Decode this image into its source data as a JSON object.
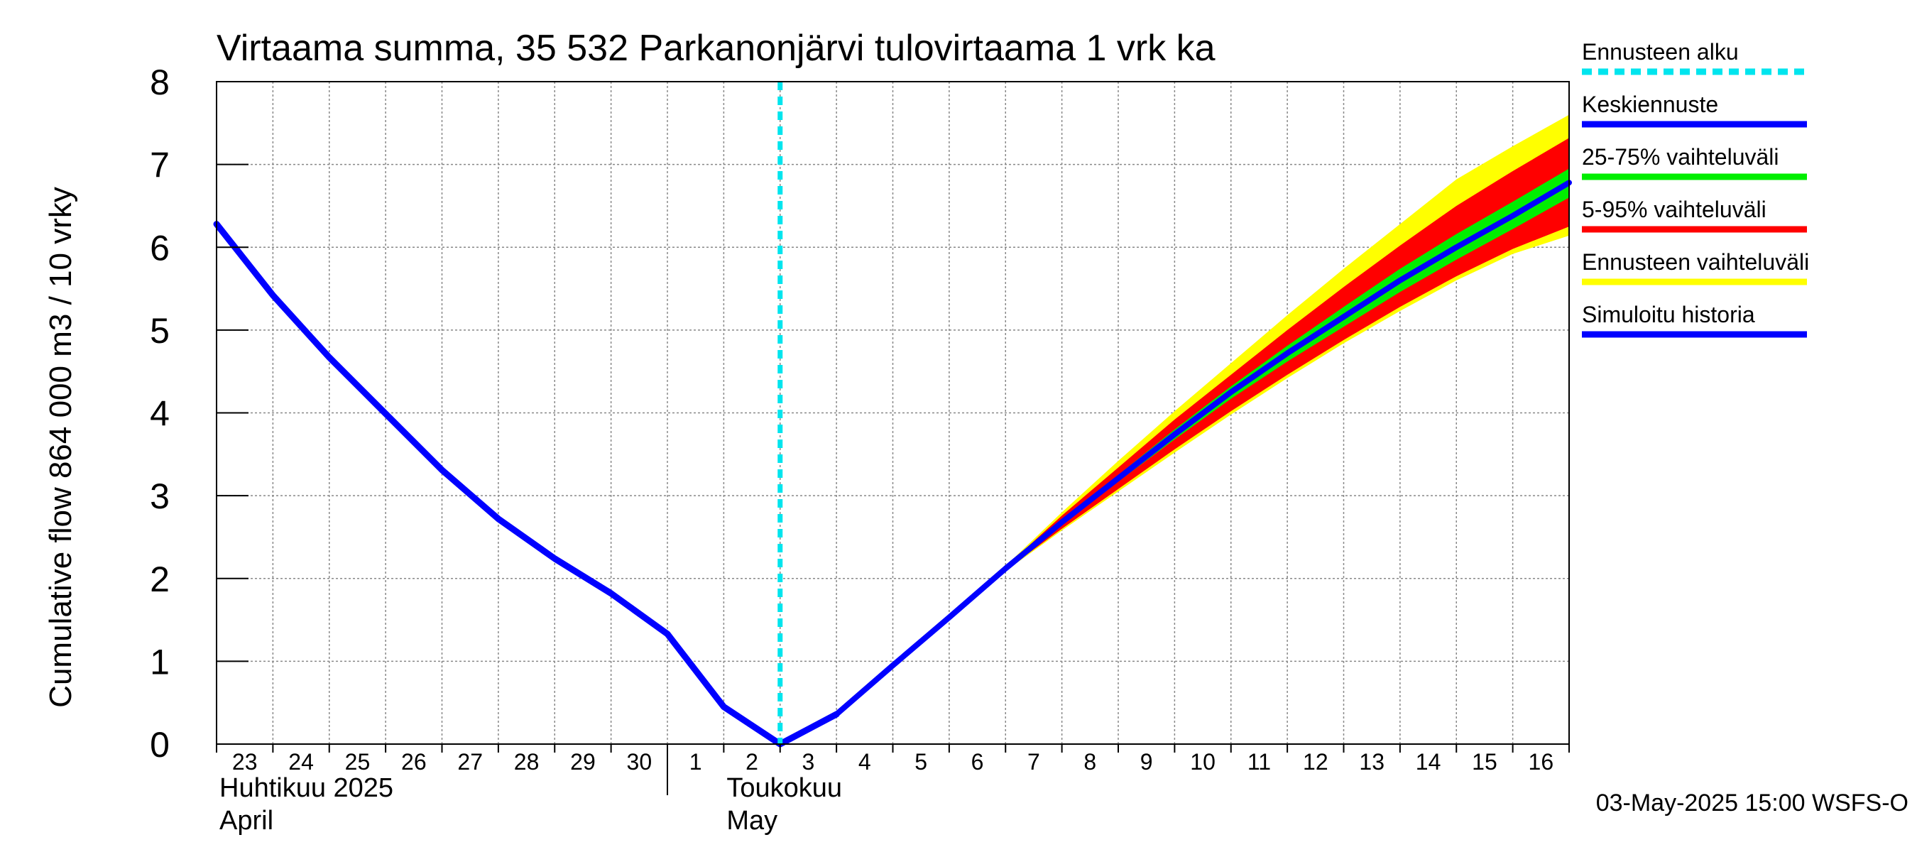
{
  "chart_data": {
    "type": "line",
    "title": "Virtaama summa, 35 532 Parkanonjärvi tulovirtaama 1 vrk ka",
    "ylabel": "Cumulative flow    864 000 m3 / 10 vrky",
    "xlabel": "",
    "ylim": [
      0,
      8
    ],
    "yticks": [
      0,
      1,
      2,
      3,
      4,
      5,
      6,
      7,
      8
    ],
    "xlim": [
      0,
      24
    ],
    "grid": true,
    "day_labels": [
      "23",
      "24",
      "25",
      "26",
      "27",
      "28",
      "29",
      "30",
      "1",
      "2",
      "3",
      "4",
      "5",
      "6",
      "7",
      "8",
      "9",
      "10",
      "11",
      "12",
      "13",
      "14",
      "15",
      "16"
    ],
    "month_labels": [
      {
        "line1": "Huhtikuu  2025",
        "line2": "April",
        "at_day": 0
      },
      {
        "line1": "Toukokuu",
        "line2": "May",
        "at_day": 9
      }
    ],
    "month_separator_day": 8,
    "forecast_start_day": 10,
    "history": {
      "name": "Simuloitu historia",
      "x": [
        0,
        1,
        2,
        3,
        4,
        5,
        6,
        7,
        8,
        9,
        10,
        11
      ],
      "y": [
        6.28,
        5.42,
        4.67,
        3.99,
        3.31,
        2.72,
        2.24,
        1.82,
        1.33,
        0.45,
        0.0,
        0.36
      ]
    },
    "median": {
      "name": "Keskiennuste",
      "x": [
        11,
        12,
        13,
        14,
        15,
        16,
        17,
        18,
        19,
        20,
        21,
        22,
        23,
        24
      ],
      "y": [
        0.36,
        0.95,
        1.53,
        2.12,
        2.68,
        3.21,
        3.74,
        4.25,
        4.72,
        5.16,
        5.6,
        6.0,
        6.38,
        6.78
      ]
    },
    "band_25_75": {
      "name": "25-75% vaihteluväli",
      "x": [
        14,
        15,
        16,
        17,
        18,
        19,
        20,
        21,
        22,
        23,
        24
      ],
      "lower": [
        2.12,
        2.66,
        3.17,
        3.68,
        4.17,
        4.62,
        5.04,
        5.46,
        5.85,
        6.22,
        6.6
      ],
      "upper": [
        2.12,
        2.7,
        3.25,
        3.8,
        4.32,
        4.81,
        5.28,
        5.74,
        6.16,
        6.55,
        6.95
      ]
    },
    "band_5_95": {
      "name": "5-95% vaihteluväli",
      "x": [
        14,
        15,
        16,
        17,
        18,
        19,
        20,
        21,
        22,
        23,
        24
      ],
      "lower": [
        2.1,
        2.6,
        3.08,
        3.56,
        4.02,
        4.46,
        4.88,
        5.28,
        5.65,
        5.98,
        6.25
      ],
      "upper": [
        2.14,
        2.76,
        3.34,
        3.92,
        4.46,
        5.0,
        5.52,
        6.02,
        6.5,
        6.92,
        7.32
      ]
    },
    "band_full": {
      "name": "Ennusteen vaihteluväli",
      "x": [
        14,
        15,
        16,
        17,
        18,
        19,
        20,
        21,
        22,
        23,
        24
      ],
      "lower": [
        2.09,
        2.58,
        3.05,
        3.52,
        3.98,
        4.42,
        4.84,
        5.23,
        5.6,
        5.92,
        6.14
      ],
      "upper": [
        2.15,
        2.8,
        3.42,
        4.02,
        4.6,
        5.18,
        5.74,
        6.28,
        6.82,
        7.22,
        7.6
      ]
    },
    "legend": {
      "position": "right",
      "entries": [
        {
          "label": "Ennusteen alku",
          "color": "#00e5ee",
          "style": "dashed"
        },
        {
          "label": "Keskiennuste",
          "color": "#0000ff",
          "style": "solid"
        },
        {
          "label": "25-75% vaihteluväli",
          "color": "#00ee00",
          "style": "solid"
        },
        {
          "label": "5-95% vaihteluväli",
          "color": "#ff0000",
          "style": "solid"
        },
        {
          "label": "Ennusteen vaihteluväli",
          "color": "#ffff00",
          "style": "solid"
        },
        {
          "label": "Simuloitu historia",
          "color": "#0000ff",
          "style": "solid"
        }
      ]
    },
    "colors": {
      "history": "#0000ff",
      "median": "#0000ff",
      "band_25_75": "#00ee00",
      "band_5_95": "#ff0000",
      "band_full": "#ffff00",
      "forecast_start": "#00e5ee",
      "grid": "#888888"
    },
    "footer": "03-May-2025 15:00 WSFS-O"
  }
}
